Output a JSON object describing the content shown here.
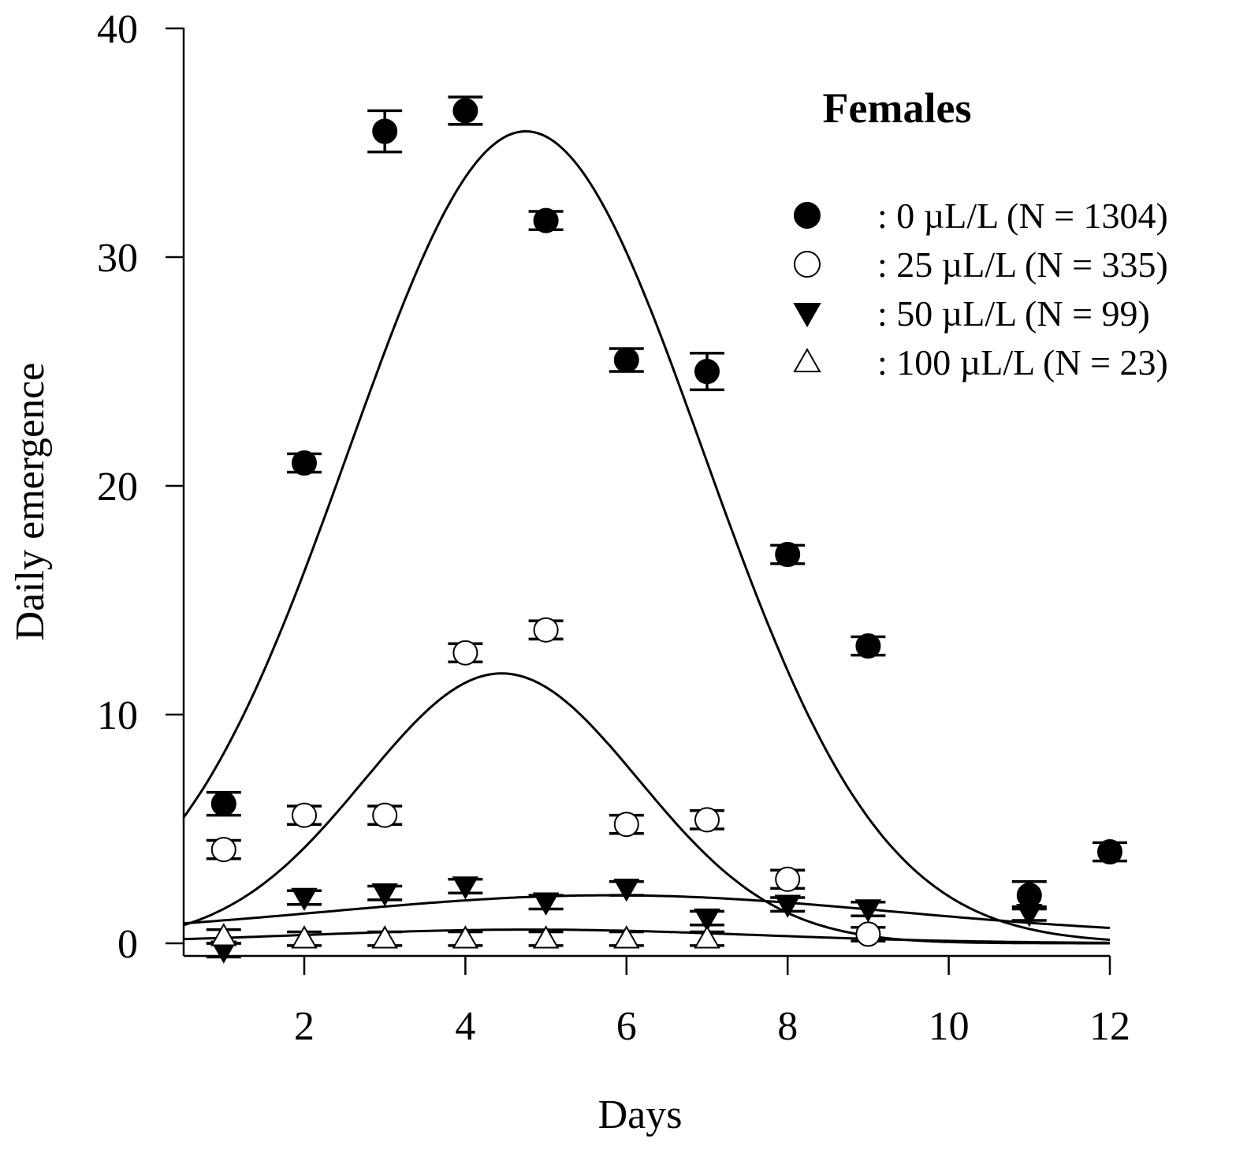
{
  "chart_data": {
    "type": "scatter",
    "title": "Females",
    "xlabel": "Days",
    "ylabel": "Daily emergence",
    "xlim": [
      0.5,
      12.2
    ],
    "ylim": [
      -0.6,
      40
    ],
    "xticks": [
      2,
      4,
      6,
      8,
      10,
      12
    ],
    "yticks": [
      0,
      10,
      20,
      30,
      40
    ],
    "legend_position": "top-right",
    "series": [
      {
        "name": ": 0 µL/L (N = 1304)",
        "marker": "filled-circle",
        "x": [
          1,
          2,
          3,
          4,
          5,
          6,
          7,
          8,
          9,
          11,
          12
        ],
        "y": [
          6.1,
          21.0,
          35.5,
          36.4,
          31.6,
          25.5,
          25.0,
          17.0,
          13.0,
          2.1,
          4.0
        ],
        "err": [
          0.5,
          0.4,
          0.9,
          0.6,
          0.4,
          0.5,
          0.8,
          0.4,
          0.4,
          0.6,
          0.4
        ],
        "fit": {
          "peak": 35.5,
          "center": 4.75,
          "sd": 2.2,
          "baseline": 0
        }
      },
      {
        "name": ": 25 µL/L (N = 335)",
        "marker": "open-circle",
        "x": [
          1,
          2,
          3,
          4,
          5,
          6,
          7,
          8,
          9
        ],
        "y": [
          4.1,
          5.6,
          5.6,
          12.7,
          13.7,
          5.2,
          5.4,
          2.8,
          0.4
        ],
        "err": [
          0.4,
          0.4,
          0.4,
          0.4,
          0.4,
          0.4,
          0.4,
          0.4,
          0.3
        ],
        "fit": {
          "peak": 11.8,
          "center": 4.45,
          "sd": 1.7,
          "baseline": 0
        }
      },
      {
        "name": ": 50 µL/L (N = 99)",
        "marker": "filled-triangle-down",
        "x": [
          1,
          2,
          3,
          4,
          5,
          6,
          7,
          8,
          9,
          11
        ],
        "y": [
          -0.3,
          2.0,
          2.2,
          2.5,
          1.8,
          2.4,
          1.1,
          1.7,
          1.5,
          1.3
        ],
        "err": [
          0.3,
          0.3,
          0.3,
          0.3,
          0.3,
          0.3,
          0.3,
          0.3,
          0.3,
          0.3
        ],
        "fit": {
          "peak": 1.8,
          "center": 5.8,
          "sd": 3.5,
          "baseline": 0.3
        }
      },
      {
        "name": ": 100 µL/L (N = 23)",
        "marker": "open-triangle-up",
        "x": [
          1,
          2,
          3,
          4,
          5,
          6,
          7
        ],
        "y": [
          0.3,
          0.2,
          0.2,
          0.2,
          0.2,
          0.2,
          0.2
        ],
        "err": [
          0.3,
          0.3,
          0.3,
          0.3,
          0.3,
          0.3,
          0.3
        ],
        "fit": {
          "peak": 0.6,
          "center": 4.8,
          "sd": 2.8,
          "baseline": 0
        }
      }
    ]
  }
}
